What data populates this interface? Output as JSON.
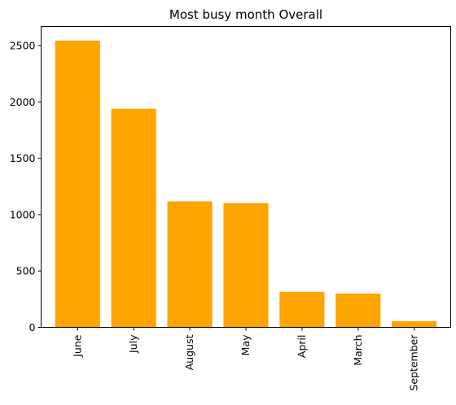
{
  "chart_data": {
    "type": "bar",
    "title": "Most busy month Overall",
    "categories": [
      "June",
      "July",
      "August",
      "May",
      "April",
      "March",
      "September"
    ],
    "values": [
      2544,
      1940,
      1118,
      1102,
      315,
      300,
      55
    ],
    "ylim": [
      0,
      2670
    ],
    "yticks": [
      0,
      500,
      1000,
      1500,
      2000,
      2500
    ],
    "xlabel": "",
    "ylabel": "",
    "bar_color": "#FFA500",
    "grid": false,
    "legend": false
  }
}
